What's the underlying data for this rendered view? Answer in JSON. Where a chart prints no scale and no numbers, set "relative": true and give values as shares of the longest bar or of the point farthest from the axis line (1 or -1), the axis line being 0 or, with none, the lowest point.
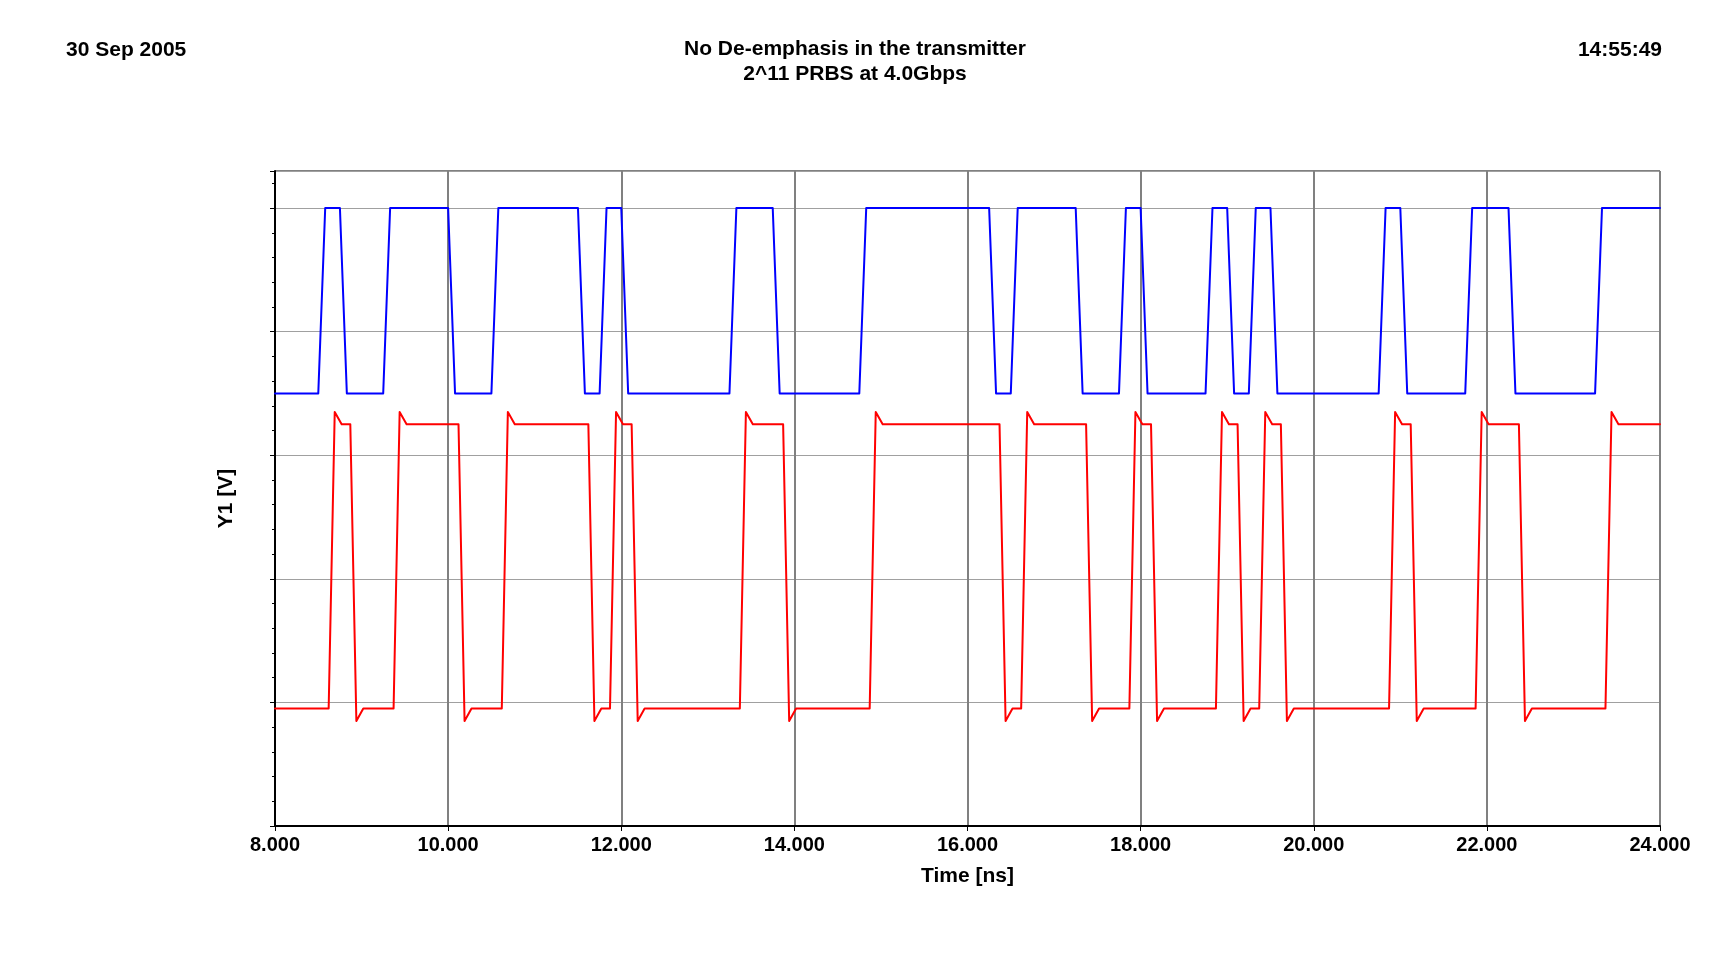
{
  "chart_data": {
    "type": "line",
    "title": "No De-emphasis in the transmitter",
    "subtitle": "2^11 PRBS at 4.0Gbps",
    "xlabel": "Time [ns]",
    "ylabel": "Y1 [V]",
    "annotations": [
      "30 Sep 2005",
      "14:55:49"
    ],
    "relative": true,
    "grid": true,
    "marker": "none",
    "line_style": "solid",
    "xlim": [
      8,
      24
    ],
    "xticks": [
      {
        "value": 8,
        "label": "8.000"
      },
      {
        "value": 10,
        "label": "10.000"
      },
      {
        "value": 12,
        "label": "12.000"
      },
      {
        "value": 14,
        "label": "14.000"
      },
      {
        "value": 16,
        "label": "16.000"
      },
      {
        "value": 18,
        "label": "18.000"
      },
      {
        "value": 20,
        "label": "20.000"
      },
      {
        "value": 22,
        "label": "22.000"
      },
      {
        "value": 24,
        "label": "24.000"
      }
    ],
    "series": [
      {
        "color": "#0000ff",
        "x": [
          8,
          8.5,
          8.58,
          8.75,
          8.83,
          9.25,
          9.33,
          10,
          10.08,
          10.5,
          10.58,
          11.5,
          11.58,
          11.75,
          11.83,
          12,
          12.08,
          13.25,
          13.33,
          13.75,
          13.83,
          14.75,
          14.83,
          16.25,
          16.33,
          16.5,
          16.58,
          17.25,
          17.33,
          17.75,
          17.83,
          18,
          18.08,
          18.75,
          18.83,
          19,
          19.08,
          19.25,
          19.33,
          19.5,
          19.58,
          20.75,
          20.83,
          21,
          21.08,
          21.75,
          21.83,
          22.25,
          22.33,
          23.25,
          23.33,
          24
        ],
        "values": [
          0.7,
          0.7,
          1,
          1,
          0.7,
          0.7,
          1,
          1,
          0.7,
          0.7,
          1,
          1,
          0.7,
          0.7,
          1,
          1,
          0.7,
          0.7,
          1,
          1,
          0.7,
          0.7,
          1,
          1,
          0.7,
          0.7,
          1,
          1,
          0.7,
          0.7,
          1,
          1,
          0.7,
          0.7,
          1,
          1,
          0.7,
          0.7,
          1,
          1,
          0.7,
          0.7,
          1,
          1,
          0.7,
          0.7,
          1,
          1,
          0.7,
          0.7,
          1,
          1
        ]
      },
      {
        "color": "#ff0000",
        "x": [
          8,
          8.62,
          8.69,
          8.77,
          8.87,
          8.94,
          9.02,
          9.37,
          9.44,
          9.52,
          10.12,
          10.19,
          10.27,
          10.62,
          10.69,
          10.77,
          11.62,
          11.69,
          11.77,
          11.87,
          11.94,
          12.02,
          12.12,
          12.19,
          12.27,
          13.37,
          13.44,
          13.52,
          13.87,
          13.94,
          14.02,
          14.87,
          14.94,
          15.02,
          16.37,
          16.44,
          16.52,
          16.62,
          16.69,
          16.77,
          17.37,
          17.44,
          17.52,
          17.87,
          17.94,
          18.02,
          18.12,
          18.19,
          18.27,
          18.87,
          18.94,
          19.02,
          19.12,
          19.19,
          19.27,
          19.37,
          19.44,
          19.52,
          19.62,
          19.69,
          19.77,
          20.87,
          20.94,
          21.02,
          21.12,
          21.19,
          21.27,
          21.87,
          21.94,
          22.02,
          22.37,
          22.44,
          22.52,
          23.37,
          23.44,
          23.52,
          24
        ],
        "values": [
          0.19,
          0.19,
          0.67,
          0.65,
          0.65,
          0.17,
          0.19,
          0.19,
          0.67,
          0.65,
          0.65,
          0.17,
          0.19,
          0.19,
          0.67,
          0.65,
          0.65,
          0.17,
          0.19,
          0.19,
          0.67,
          0.65,
          0.65,
          0.17,
          0.19,
          0.19,
          0.67,
          0.65,
          0.65,
          0.17,
          0.19,
          0.19,
          0.67,
          0.65,
          0.65,
          0.17,
          0.19,
          0.19,
          0.67,
          0.65,
          0.65,
          0.17,
          0.19,
          0.19,
          0.67,
          0.65,
          0.65,
          0.17,
          0.19,
          0.19,
          0.67,
          0.65,
          0.65,
          0.17,
          0.19,
          0.19,
          0.67,
          0.65,
          0.65,
          0.17,
          0.19,
          0.19,
          0.67,
          0.65,
          0.65,
          0.17,
          0.19,
          0.19,
          0.67,
          0.65,
          0.65,
          0.17,
          0.19,
          0.19,
          0.67,
          0.65,
          0.65
        ]
      }
    ]
  }
}
